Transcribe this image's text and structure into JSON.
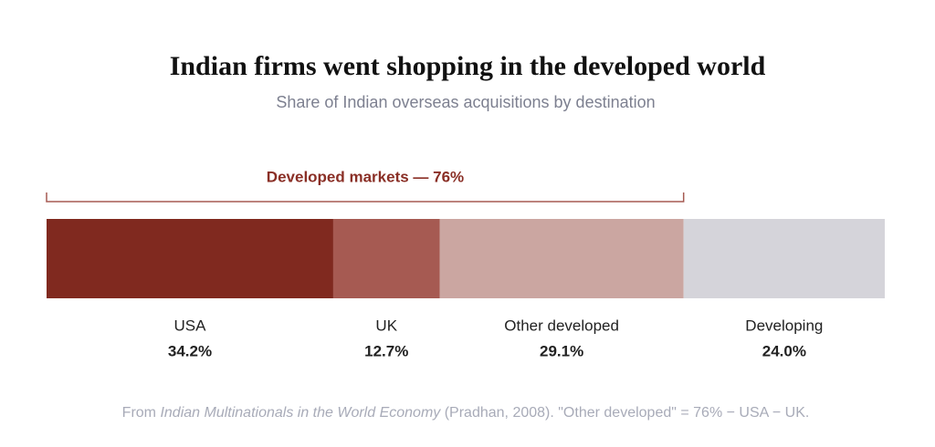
{
  "chart_data": {
    "type": "stacked-bar-100",
    "title": "Indian firms went shopping in the developed world",
    "subtitle": "Share of Indian overseas acquisitions by destination",
    "annotation": "Developed markets — 76%",
    "categories": [
      "USA",
      "UK",
      "Other developed",
      "Developing"
    ],
    "values": [
      34.2,
      12.7,
      29.1,
      24.0
    ],
    "value_labels": [
      "34.2%",
      "12.7%",
      "29.1%",
      "24.0%"
    ],
    "colors": [
      "#80291f",
      "#a65a52",
      "#cba6a1",
      "#d5d4da"
    ],
    "source": [
      "From ",
      "Indian Multinationals in the World Economy",
      " (Pradhan, 2008). \"Other developed\" = 76% − USA − UK."
    ]
  }
}
